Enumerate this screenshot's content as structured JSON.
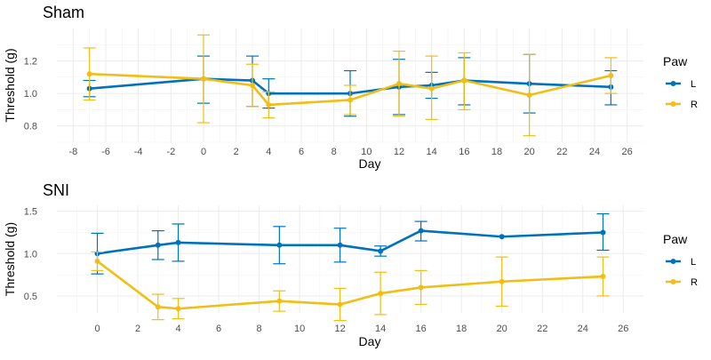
{
  "colors": {
    "L": "#0072BD",
    "R": "#F0BE14"
  },
  "chart_data": [
    {
      "type": "line",
      "title": "Sham",
      "xlabel": "Day",
      "ylabel": "Threshold (g)",
      "xlim": [
        -9,
        27
      ],
      "ylim": [
        0.7,
        1.4
      ],
      "xticks": [
        -8,
        -6,
        -4,
        -2,
        0,
        2,
        4,
        6,
        8,
        10,
        12,
        14,
        16,
        18,
        20,
        22,
        24,
        26
      ],
      "yticks": [
        0.8,
        1.0,
        1.2
      ],
      "ytick_labels": [
        "0.8",
        "1.0",
        "1.2"
      ],
      "grid": true,
      "legend": {
        "title": "Paw",
        "position": "right"
      },
      "series": [
        {
          "name": "L",
          "x": [
            -7,
            0,
            3,
            4,
            9,
            12,
            14,
            16,
            20,
            25
          ],
          "y": [
            1.03,
            1.09,
            1.08,
            1.0,
            1.0,
            1.04,
            1.05,
            1.08,
            1.06,
            1.04
          ],
          "err_low": [
            0.98,
            0.94,
            0.92,
            0.91,
            0.86,
            0.87,
            0.97,
            0.93,
            0.88,
            0.93
          ],
          "err_high": [
            1.08,
            1.23,
            1.23,
            1.09,
            1.14,
            1.21,
            1.13,
            1.22,
            1.24,
            1.14
          ]
        },
        {
          "name": "R",
          "x": [
            -7,
            0,
            3,
            4,
            9,
            12,
            14,
            16,
            20,
            25
          ],
          "y": [
            1.12,
            1.09,
            1.05,
            0.93,
            0.96,
            1.06,
            1.03,
            1.08,
            0.99,
            1.11
          ],
          "err_low": [
            0.96,
            0.82,
            0.92,
            0.85,
            0.87,
            0.86,
            0.84,
            0.9,
            0.74,
            1.0
          ],
          "err_high": [
            1.28,
            1.36,
            1.18,
            1.01,
            1.05,
            1.26,
            1.23,
            1.25,
            1.24,
            1.22
          ]
        }
      ]
    },
    {
      "type": "line",
      "title": "SNI",
      "xlabel": "Day",
      "ylabel": "Threshold (g)",
      "xlim": [
        -2,
        27
      ],
      "ylim": [
        0.3,
        1.57
      ],
      "xticks": [
        0,
        2,
        4,
        6,
        8,
        10,
        12,
        14,
        16,
        18,
        20,
        22,
        24,
        26
      ],
      "yticks": [
        0.5,
        1.0,
        1.5
      ],
      "ytick_labels": [
        "0.5",
        "1.0",
        "1.5"
      ],
      "grid": true,
      "legend": {
        "title": "Paw",
        "position": "right"
      },
      "series": [
        {
          "name": "L",
          "x": [
            0,
            3,
            4,
            9,
            12,
            14,
            16,
            20,
            25
          ],
          "y": [
            1.0,
            1.1,
            1.13,
            1.1,
            1.1,
            1.03,
            1.27,
            1.2,
            1.25
          ],
          "err_low": [
            0.76,
            0.93,
            0.91,
            0.88,
            0.9,
            0.97,
            1.15,
            1.2,
            1.04
          ],
          "err_high": [
            1.24,
            1.27,
            1.35,
            1.32,
            1.3,
            1.09,
            1.38,
            1.2,
            1.47
          ]
        },
        {
          "name": "R",
          "x": [
            0,
            3,
            4,
            9,
            12,
            14,
            16,
            20,
            25
          ],
          "y": [
            0.91,
            0.37,
            0.35,
            0.44,
            0.4,
            0.53,
            0.6,
            0.67,
            0.73
          ],
          "err_low": [
            0.8,
            0.22,
            0.23,
            0.32,
            0.21,
            0.28,
            0.4,
            0.38,
            0.5
          ],
          "err_high": [
            1.02,
            0.52,
            0.47,
            0.56,
            0.59,
            0.78,
            0.8,
            0.96,
            0.96
          ]
        }
      ]
    }
  ]
}
